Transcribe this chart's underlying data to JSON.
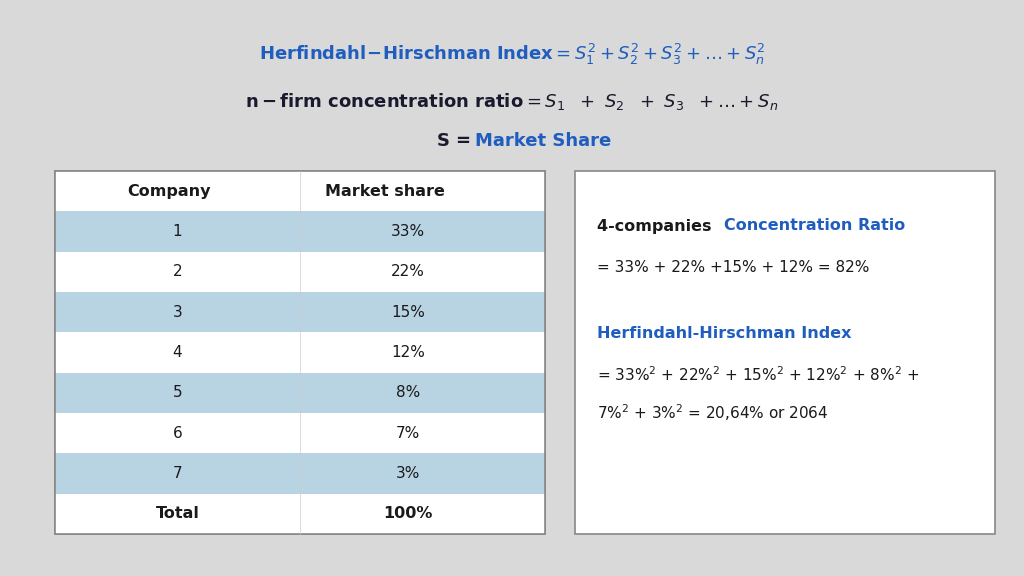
{
  "bg_color": "#d9d9d9",
  "title_line1_black": "Herfindahl-Hirschman Index = S",
  "title_line1_blue": "#1f5dbf",
  "title_line2_black": "n – firm concentration ratio = S",
  "title_line3_black": "S = ",
  "title_line3_blue": "Market Share",
  "table_companies": [
    "1",
    "2",
    "3",
    "4",
    "5",
    "6",
    "7"
  ],
  "table_shares": [
    "33%",
    "22%",
    "15%",
    "12%",
    "8%",
    "7%",
    "3%"
  ],
  "table_total": "100%",
  "row_colors": [
    "#b8d4e3",
    "#ffffff",
    "#b8d4e3",
    "#ffffff",
    "#b8d4e3",
    "#ffffff",
    "#b8d4e3"
  ],
  "header_bg": "#ffffff",
  "box_bg": "#ffffff",
  "blue_color": "#1f5dbf",
  "dark_color": "#1a1a2e",
  "text_color": "#1a1a1a"
}
